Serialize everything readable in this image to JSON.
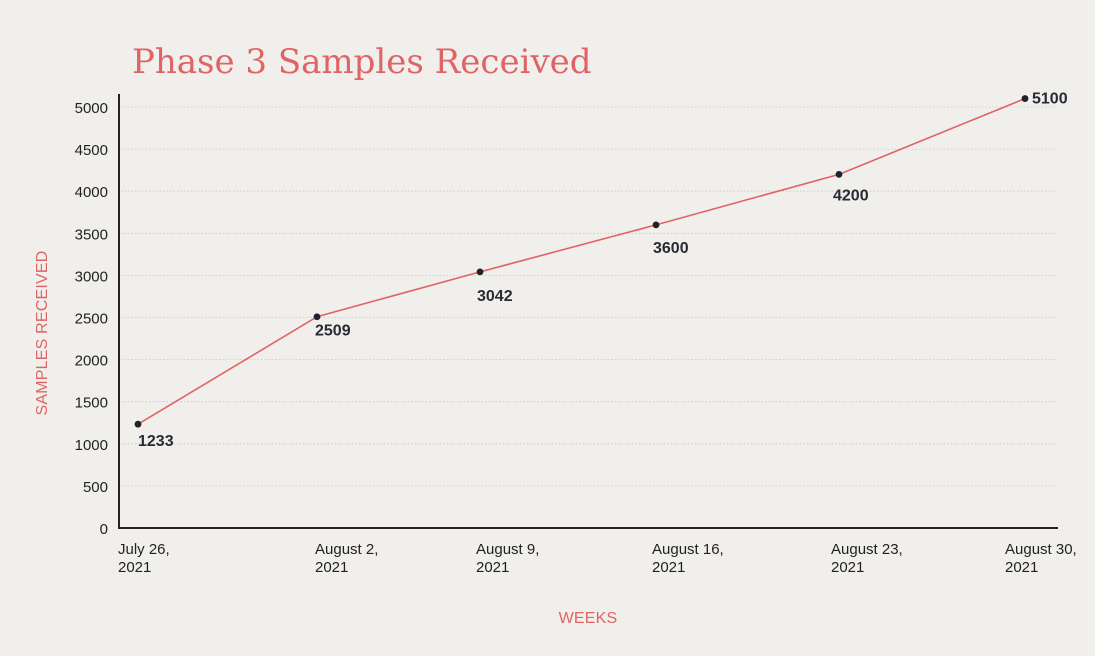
{
  "chart_data": {
    "type": "line",
    "title": "Phase 3 Samples Received",
    "xlabel": "WEEKS",
    "ylabel": "SAMPLES RECEIVED",
    "categories": [
      [
        "July 26,",
        "2021"
      ],
      [
        "August 2,",
        "2021"
      ],
      [
        "August 9,",
        "2021"
      ],
      [
        "August 16,",
        "2021"
      ],
      [
        "August 23,",
        "2021"
      ],
      [
        "August 30,",
        "2021"
      ]
    ],
    "x": [
      "July 26, 2021",
      "August 2, 2021",
      "August 9, 2021",
      "August 16, 2021",
      "August 23, 2021",
      "August 30, 2021"
    ],
    "series": [
      {
        "values": [
          1233,
          2509,
          3042,
          3600,
          4200,
          5100
        ]
      }
    ],
    "data_labels": [
      "1233",
      "2509",
      "3042",
      "3600",
      "4200",
      "5100"
    ],
    "ylim": [
      0,
      5000
    ],
    "yticks": [
      0,
      500,
      1000,
      1500,
      2000,
      2500,
      3000,
      3500,
      4000,
      4500,
      5000
    ],
    "grid": true,
    "legend": "none",
    "colors": {
      "background": "#f0efeb",
      "accent": "#e06466",
      "line": "#e06466",
      "point": "#1f2030",
      "text": "#222222"
    }
  }
}
